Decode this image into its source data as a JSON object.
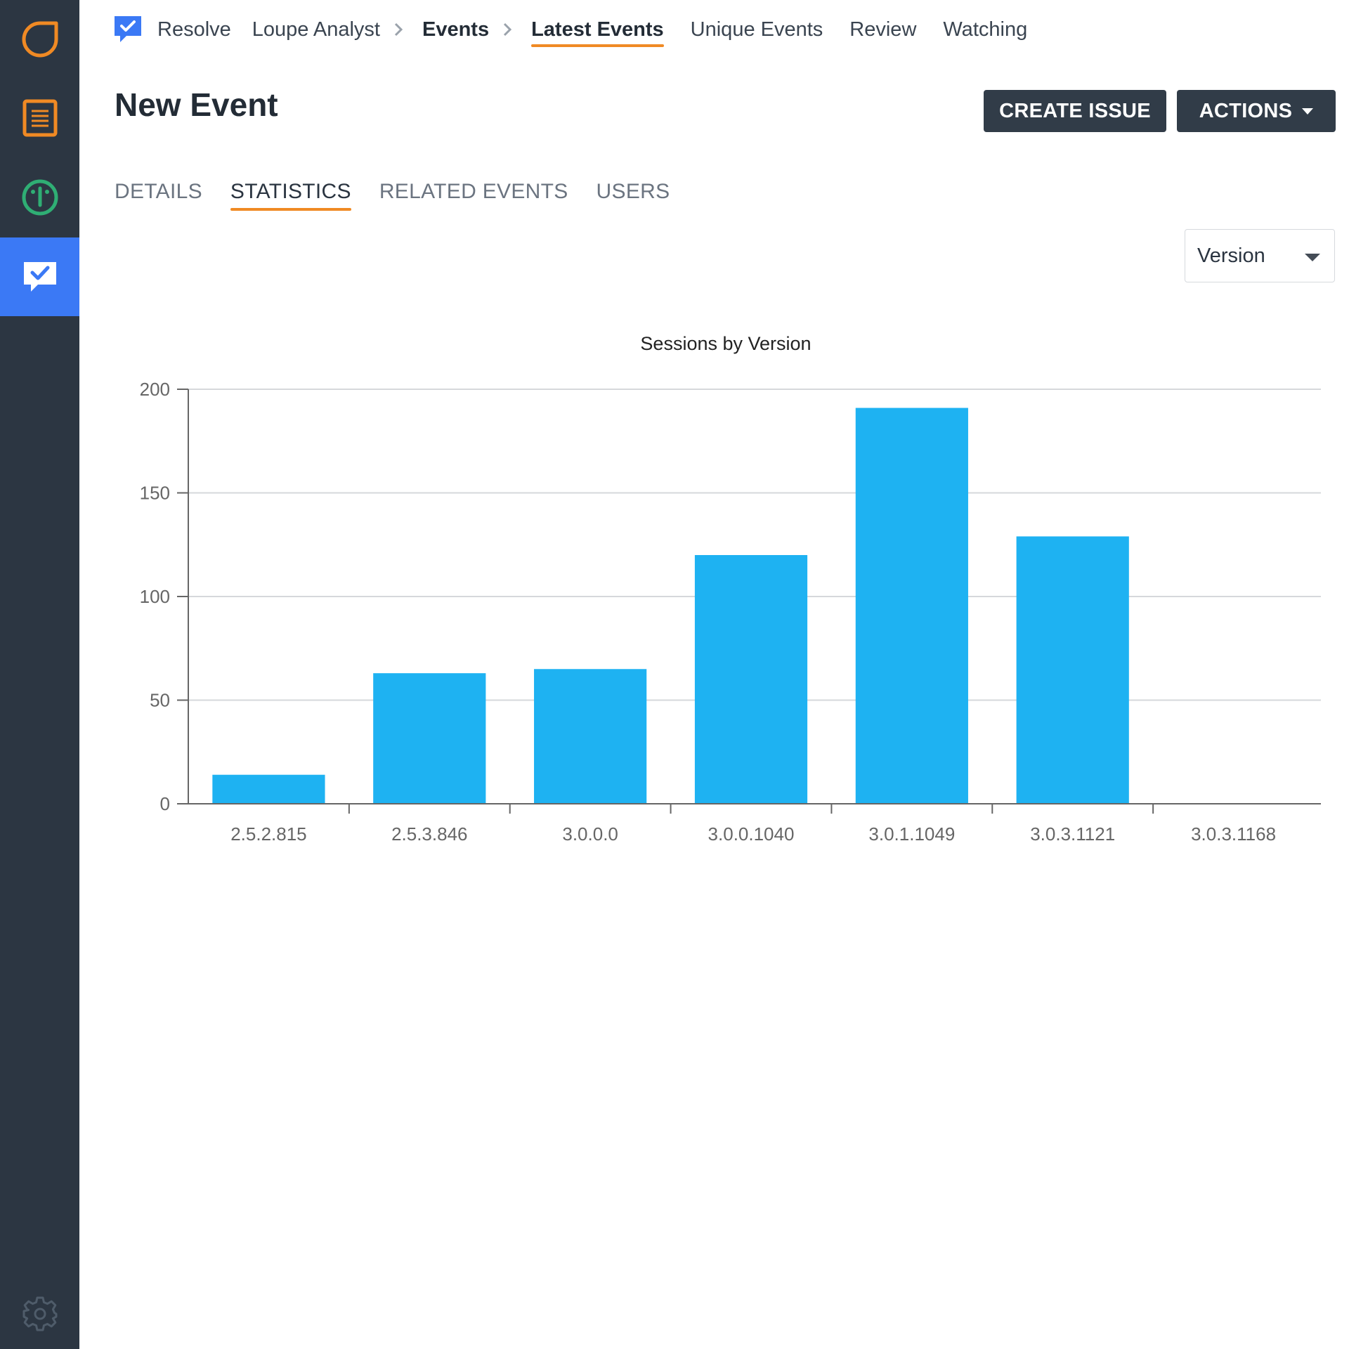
{
  "sidebar": {
    "items": [
      {
        "icon": "ring-icon",
        "color": "#f08a24"
      },
      {
        "icon": "document-icon",
        "color": "#f08a24"
      },
      {
        "icon": "gauge-icon",
        "color": "#2fae74"
      },
      {
        "icon": "chat-check-icon",
        "color": "#ffffff",
        "active": true
      }
    ],
    "settings_icon": "gear-icon"
  },
  "topnav": {
    "logo_icon": "chat-check-icon",
    "app_name": "Resolve",
    "project": "Loupe Analyst",
    "section": "Events",
    "links": [
      "Latest Events",
      "Unique Events",
      "Review",
      "Watching"
    ],
    "active_link": "Latest Events"
  },
  "header": {
    "title": "New Event",
    "create_issue_label": "CREATE ISSUE",
    "actions_label": "ACTIONS"
  },
  "tabs": [
    {
      "label": "DETAILS"
    },
    {
      "label": "STATISTICS",
      "active": true
    },
    {
      "label": "RELATED EVENTS"
    },
    {
      "label": "USERS"
    }
  ],
  "group_select": {
    "value": "Version"
  },
  "colors": {
    "accent": "#f08a24",
    "bar": "#1eb2f2",
    "rail": "#2c3642",
    "rail_active": "#3b79f5"
  },
  "chart_data": {
    "type": "bar",
    "title": "Sessions by Version",
    "categories": [
      "2.5.2.815",
      "2.5.3.846",
      "3.0.0.0",
      "3.0.0.1040",
      "3.0.1.1049",
      "3.0.3.1121",
      "3.0.3.1168"
    ],
    "values": [
      14,
      63,
      65,
      120,
      191,
      129,
      0
    ],
    "ylim": [
      0,
      200
    ],
    "yticks": [
      0,
      50,
      100,
      150,
      200
    ],
    "grid": true,
    "legend": "none"
  }
}
